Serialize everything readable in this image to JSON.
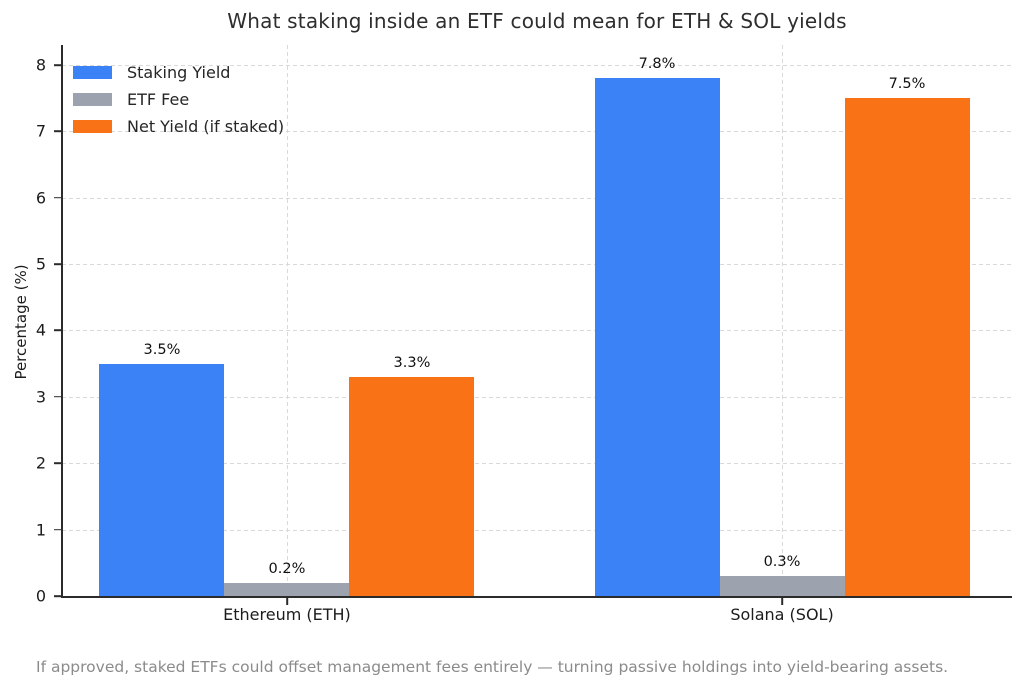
{
  "figure": {
    "title": "What staking inside an ETF could mean for ETH & SOL yields",
    "caption": "If approved, staked ETFs could offset management fees entirely — turning passive holdings into yield-bearing assets."
  },
  "chart_data": {
    "type": "bar",
    "title": "What staking inside an ETF could mean for ETH & SOL yields",
    "categories": [
      "Ethereum (ETH)",
      "Solana (SOL)"
    ],
    "series": [
      {
        "name": "Staking Yield",
        "color": "#3b82f6",
        "values": [
          3.5,
          7.8
        ],
        "value_labels": [
          "3.5%",
          "7.8%"
        ]
      },
      {
        "name": "ETF Fee",
        "color": "#9ca3af",
        "values": [
          0.2,
          0.3
        ],
        "value_labels": [
          "0.2%",
          "0.3%"
        ]
      },
      {
        "name": "Net Yield (if staked)",
        "color": "#f97316",
        "values": [
          3.3,
          7.5
        ],
        "value_labels": [
          "3.3%",
          "7.5%"
        ]
      }
    ],
    "xlabel": "",
    "ylabel": "Percentage (%)",
    "ylim": [
      0,
      8.3
    ],
    "yticks": [
      0,
      1,
      2,
      3,
      4,
      5,
      6,
      7,
      8
    ],
    "grid": "dashed",
    "legend_position": "upper-left",
    "caption": "If approved, staked ETFs could offset management fees entirely — turning passive holdings into yield-bearing assets."
  },
  "colors": {
    "background": "#ffffff",
    "title": "#2e2e2e",
    "axis": "#2b2b2b",
    "tick_labels": "#1c1c1c",
    "grid": "#d9d9d9",
    "value_labels": "#111111",
    "caption": "#8b8b8b"
  }
}
